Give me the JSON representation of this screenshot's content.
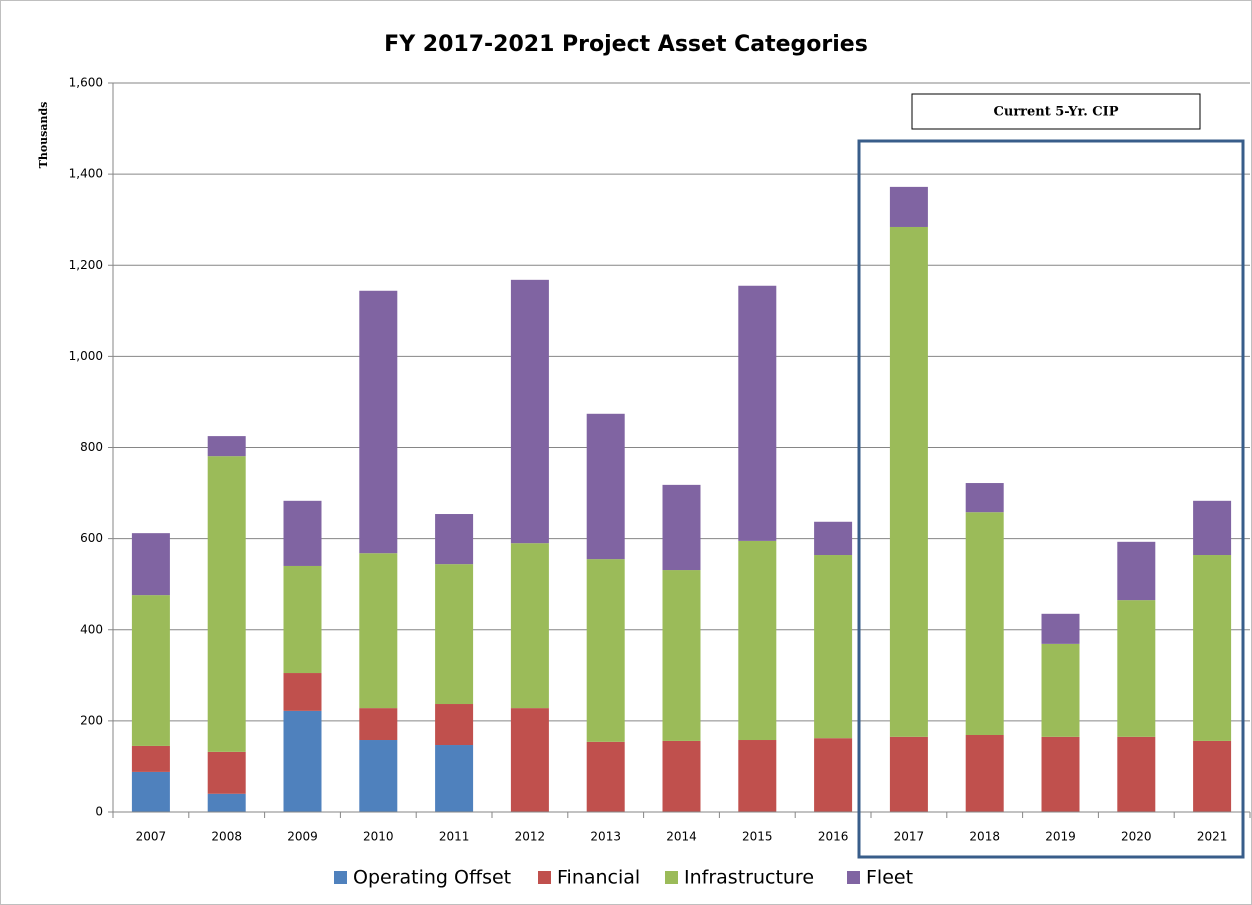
{
  "chart_data": {
    "type": "stacked_bar",
    "title": "FY 2017-2021 Project Asset Categories",
    "y_label": "Thousands",
    "annotation": "Current 5-Yr. CIP",
    "categories": [
      "2007",
      "2008",
      "2009",
      "2010",
      "2011",
      "2012",
      "2013",
      "2014",
      "2015",
      "2016",
      "2017",
      "2018",
      "2019",
      "2020",
      "2021"
    ],
    "series": [
      {
        "name": "Operating Offset",
        "color": "#4f81bd",
        "values": [
          88,
          40,
          222,
          158,
          147,
          0,
          0,
          0,
          0,
          0,
          0,
          0,
          0,
          0,
          0
        ]
      },
      {
        "name": "Financial",
        "color": "#c0504d",
        "values": [
          57,
          92,
          83,
          70,
          90,
          228,
          154,
          156,
          158,
          162,
          165,
          169,
          165,
          165,
          156
        ]
      },
      {
        "name": "Infrastructure",
        "color": "#9bbb59",
        "values": [
          331,
          649,
          235,
          340,
          307,
          362,
          401,
          375,
          437,
          402,
          1119,
          489,
          204,
          300,
          408
        ]
      },
      {
        "name": "Fleet",
        "color": "#8064a2",
        "values": [
          136,
          44,
          143,
          576,
          110,
          578,
          319,
          187,
          560,
          73,
          88,
          64,
          66,
          128,
          119
        ]
      }
    ],
    "ylim": [
      0,
      1600
    ],
    "yticks": [
      0,
      200,
      400,
      600,
      800,
      {
        "value": 1000,
        "label": "1,000"
      },
      {
        "value": 1200,
        "label": "1,200"
      },
      {
        "value": 1400,
        "label": "1,400"
      },
      {
        "value": 1600,
        "label": "1,600"
      }
    ],
    "grid": true
  }
}
